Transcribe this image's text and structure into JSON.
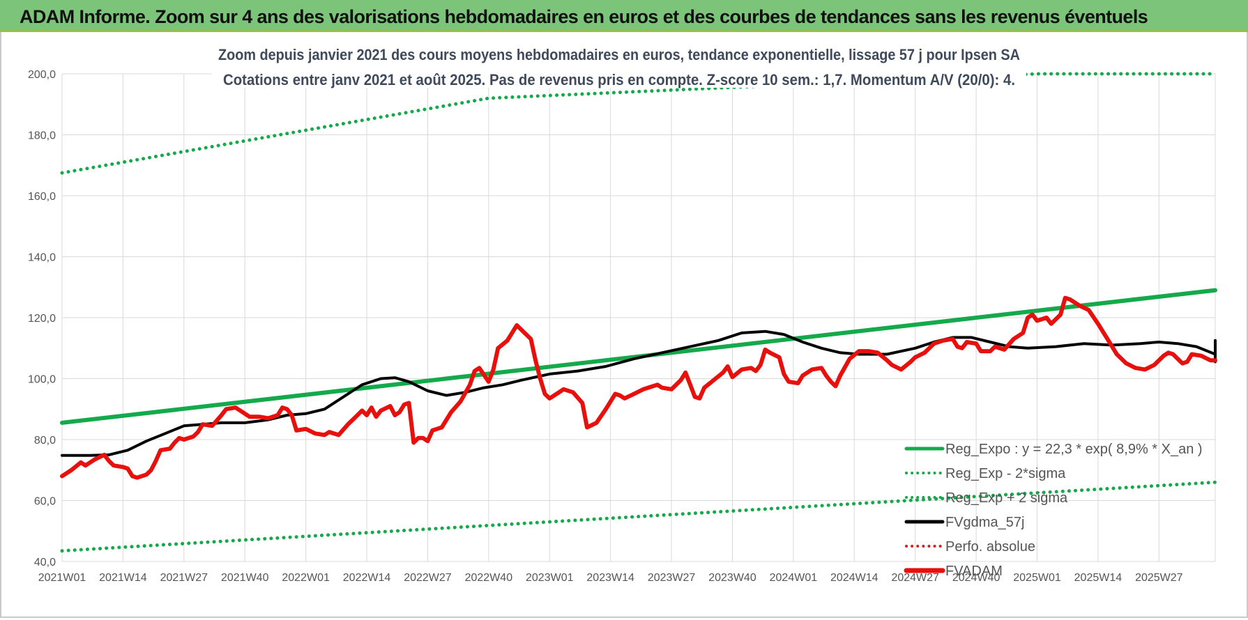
{
  "header": {
    "title": "ADAM Informe. Zoom sur 4 ans des valorisations hebdomadaires en euros et des courbes de tendances sans les revenus éventuels"
  },
  "chart_data": {
    "type": "line",
    "title_line1": "Zoom depuis janvier 2021 des cours moyens hebdomadaires en euros, tendance exponentielle, lissage 57 j pour Ipsen SA",
    "title_line2": "Cotations entre janv 2021 et août 2025. Pas de revenus pris en compte. Z-score 10 sem.: 1,7. Momentum A/V (20/0): 4.",
    "ylim": [
      40,
      200
    ],
    "y_ticks": [
      "40,0",
      "60,0",
      "80,0",
      "100,0",
      "120,0",
      "140,0",
      "160,0",
      "180,0",
      "200,0"
    ],
    "x_ticks": [
      "2021W01",
      "2021W14",
      "2021W27",
      "2021W40",
      "2022W01",
      "2022W14",
      "2022W27",
      "2022W40",
      "2023W01",
      "2023W14",
      "2023W27",
      "2023W40",
      "2024W01",
      "2024W14",
      "2024W27",
      "2024W40",
      "2025W01",
      "2025W14",
      "2025W27"
    ],
    "week_range": [
      0,
      246
    ],
    "grid": true,
    "legend_position": "right",
    "series": [
      {
        "name": "Reg_Expo : y = 22,3 * exp( 8,9% *  X_an )",
        "color": "#14a94a",
        "style": "solid",
        "width": 6,
        "points": [
          [
            0,
            85.5
          ],
          [
            246,
            129
          ]
        ]
      },
      {
        "name": "Reg_Exp - 2*sigma",
        "color": "#14a94a",
        "style": "dotted",
        "width": 5,
        "points": [
          [
            0,
            43.5
          ],
          [
            246,
            66
          ]
        ]
      },
      {
        "name": "Reg_Exp + 2 sigma",
        "color": "#14a94a",
        "style": "dotted",
        "width": 5,
        "points": [
          [
            0,
            167.5
          ],
          [
            91,
            192
          ],
          [
            208,
            200
          ],
          [
            246,
            200
          ]
        ]
      },
      {
        "name": "FVgdma_57j",
        "color": "#000000",
        "style": "solid",
        "width": 4,
        "points": [
          [
            0,
            74.8
          ],
          [
            6,
            74.8
          ],
          [
            10,
            75
          ],
          [
            14,
            76.5
          ],
          [
            18,
            79.5
          ],
          [
            22,
            82
          ],
          [
            26,
            84.5
          ],
          [
            30,
            85
          ],
          [
            34,
            85.5
          ],
          [
            39,
            85.5
          ],
          [
            44,
            86.5
          ],
          [
            48,
            88
          ],
          [
            52,
            88.5
          ],
          [
            56,
            90
          ],
          [
            60,
            94
          ],
          [
            64,
            98
          ],
          [
            68,
            100
          ],
          [
            71,
            100.3
          ],
          [
            74,
            99
          ],
          [
            78,
            96
          ],
          [
            82,
            94.5
          ],
          [
            86,
            95.5
          ],
          [
            90,
            97
          ],
          [
            94,
            98
          ],
          [
            98,
            99.5
          ],
          [
            104,
            101.5
          ],
          [
            110,
            102.5
          ],
          [
            116,
            104
          ],
          [
            122,
            106.5
          ],
          [
            128,
            108.5
          ],
          [
            134,
            110.5
          ],
          [
            140,
            112.5
          ],
          [
            145,
            115
          ],
          [
            150,
            115.5
          ],
          [
            154,
            114.5
          ],
          [
            158,
            112
          ],
          [
            162,
            110
          ],
          [
            166,
            108.5
          ],
          [
            170,
            108
          ],
          [
            176,
            108
          ],
          [
            182,
            110
          ],
          [
            186,
            112
          ],
          [
            190,
            113.5
          ],
          [
            194,
            113.5
          ],
          [
            198,
            112
          ],
          [
            202,
            110.5
          ],
          [
            206,
            110
          ],
          [
            212,
            110.5
          ],
          [
            218,
            111.5
          ],
          [
            224,
            111
          ],
          [
            230,
            111.5
          ],
          [
            234,
            112
          ],
          [
            238,
            111.5
          ],
          [
            242,
            110.5
          ],
          [
            248,
            108
          ],
          [
            252,
            106
          ],
          [
            256,
            105.5
          ],
          [
            262,
            106
          ],
          [
            268,
            107
          ],
          [
            274,
            109.5
          ],
          [
            280,
            112.5
          ]
        ]
      },
      {
        "name": "Perfo. absolue",
        "color": "#d42020",
        "style": "dotted",
        "width": 3,
        "points": []
      },
      {
        "name": "FVADAM",
        "color": "#e8100c",
        "style": "solid",
        "width": 6,
        "points": [
          [
            0,
            68
          ],
          [
            2,
            70
          ],
          [
            4,
            72.5
          ],
          [
            5,
            71.5
          ],
          [
            7,
            73.5
          ],
          [
            9,
            75
          ],
          [
            10,
            73
          ],
          [
            11,
            71.5
          ],
          [
            13,
            71
          ],
          [
            14,
            70.5
          ],
          [
            15,
            68
          ],
          [
            16,
            67.5
          ],
          [
            18,
            68.5
          ],
          [
            19,
            70
          ],
          [
            20,
            73
          ],
          [
            21,
            76.5
          ],
          [
            23,
            77
          ],
          [
            24,
            79
          ],
          [
            25,
            80.5
          ],
          [
            26,
            80
          ],
          [
            28,
            81
          ],
          [
            29,
            82.5
          ],
          [
            30,
            85
          ],
          [
            32,
            84.5
          ],
          [
            34,
            88
          ],
          [
            35,
            90
          ],
          [
            37,
            90.5
          ],
          [
            38,
            89.5
          ],
          [
            40,
            87.5
          ],
          [
            42,
            87.5
          ],
          [
            44,
            87
          ],
          [
            46,
            88
          ],
          [
            47,
            90.5
          ],
          [
            48,
            90
          ],
          [
            49,
            88
          ],
          [
            50,
            83
          ],
          [
            52,
            83.5
          ],
          [
            54,
            82
          ],
          [
            56,
            81.5
          ],
          [
            57,
            82.5
          ],
          [
            59,
            81.5
          ],
          [
            61,
            85
          ],
          [
            62,
            86.5
          ],
          [
            64,
            89.5
          ],
          [
            65,
            88
          ],
          [
            66,
            90.5
          ],
          [
            67,
            87.5
          ],
          [
            68,
            89.5
          ],
          [
            70,
            91
          ],
          [
            71,
            88
          ],
          [
            72,
            89
          ],
          [
            73,
            91.5
          ],
          [
            74,
            92
          ],
          [
            75,
            79
          ],
          [
            76,
            80.5
          ],
          [
            77,
            80.5
          ],
          [
            78,
            79.5
          ],
          [
            79,
            83
          ],
          [
            80,
            83.5
          ],
          [
            81,
            84
          ],
          [
            83,
            89
          ],
          [
            85,
            92.5
          ],
          [
            87,
            98
          ],
          [
            88,
            102.5
          ],
          [
            89,
            103.5
          ],
          [
            91,
            99
          ],
          [
            92,
            103
          ],
          [
            93,
            110
          ],
          [
            95,
            112.5
          ],
          [
            97,
            117.5
          ],
          [
            98,
            116
          ],
          [
            100,
            113
          ],
          [
            101,
            106
          ],
          [
            102,
            100
          ],
          [
            103,
            95
          ],
          [
            104,
            93.5
          ],
          [
            106,
            95.5
          ],
          [
            107,
            96.5
          ],
          [
            109,
            95.5
          ],
          [
            111,
            92
          ],
          [
            112,
            84
          ],
          [
            114,
            85.5
          ],
          [
            116,
            90
          ],
          [
            118,
            95
          ],
          [
            119,
            94.5
          ],
          [
            120,
            93.5
          ],
          [
            122,
            95
          ],
          [
            124,
            96.5
          ],
          [
            125,
            97
          ],
          [
            127,
            98
          ],
          [
            128,
            97
          ],
          [
            130,
            96.5
          ],
          [
            132,
            99.5
          ],
          [
            133,
            102
          ],
          [
            134,
            98
          ],
          [
            135,
            94
          ],
          [
            136,
            93.5
          ],
          [
            137,
            97
          ],
          [
            139,
            99.5
          ],
          [
            141,
            102
          ],
          [
            142,
            104
          ],
          [
            143,
            100.5
          ],
          [
            145,
            103
          ],
          [
            147,
            103.5
          ],
          [
            148,
            102.5
          ],
          [
            149,
            104.5
          ],
          [
            150,
            109.5
          ],
          [
            151,
            108.5
          ],
          [
            153,
            107
          ],
          [
            154,
            101.5
          ],
          [
            155,
            99
          ],
          [
            157,
            98.5
          ],
          [
            158,
            101
          ],
          [
            160,
            103
          ],
          [
            162,
            103.5
          ],
          [
            163,
            101
          ],
          [
            164,
            99
          ],
          [
            165,
            97.5
          ],
          [
            166,
            101
          ],
          [
            168,
            106.5
          ],
          [
            170,
            109
          ],
          [
            172,
            109
          ],
          [
            174,
            108.5
          ],
          [
            176,
            106
          ],
          [
            177,
            104.5
          ],
          [
            179,
            103
          ],
          [
            181,
            105.5
          ],
          [
            182,
            107
          ],
          [
            184,
            108.5
          ],
          [
            186,
            111.5
          ],
          [
            188,
            112.5
          ],
          [
            190,
            113
          ],
          [
            191,
            110.5
          ],
          [
            192,
            110
          ],
          [
            193,
            112
          ],
          [
            195,
            111.5
          ],
          [
            196,
            109
          ],
          [
            198,
            109
          ],
          [
            199,
            110.5
          ],
          [
            201,
            109.5
          ],
          [
            203,
            113
          ],
          [
            205,
            115
          ],
          [
            206,
            120
          ],
          [
            207,
            121
          ],
          [
            208,
            119
          ],
          [
            210,
            120
          ],
          [
            211,
            118
          ],
          [
            212,
            119.5
          ],
          [
            213,
            121
          ],
          [
            214,
            126.5
          ],
          [
            215,
            126
          ],
          [
            217,
            124
          ],
          [
            219,
            122.5
          ],
          [
            221,
            118
          ],
          [
            223,
            113
          ],
          [
            225,
            108
          ],
          [
            227,
            105
          ],
          [
            229,
            103.5
          ],
          [
            231,
            103
          ],
          [
            233,
            104.5
          ],
          [
            235,
            107.5
          ],
          [
            236,
            108.5
          ],
          [
            237,
            108
          ],
          [
            239,
            105
          ],
          [
            240,
            105.5
          ],
          [
            241,
            108
          ],
          [
            243,
            107.5
          ],
          [
            245,
            106
          ],
          [
            246,
            106
          ]
        ]
      }
    ]
  }
}
